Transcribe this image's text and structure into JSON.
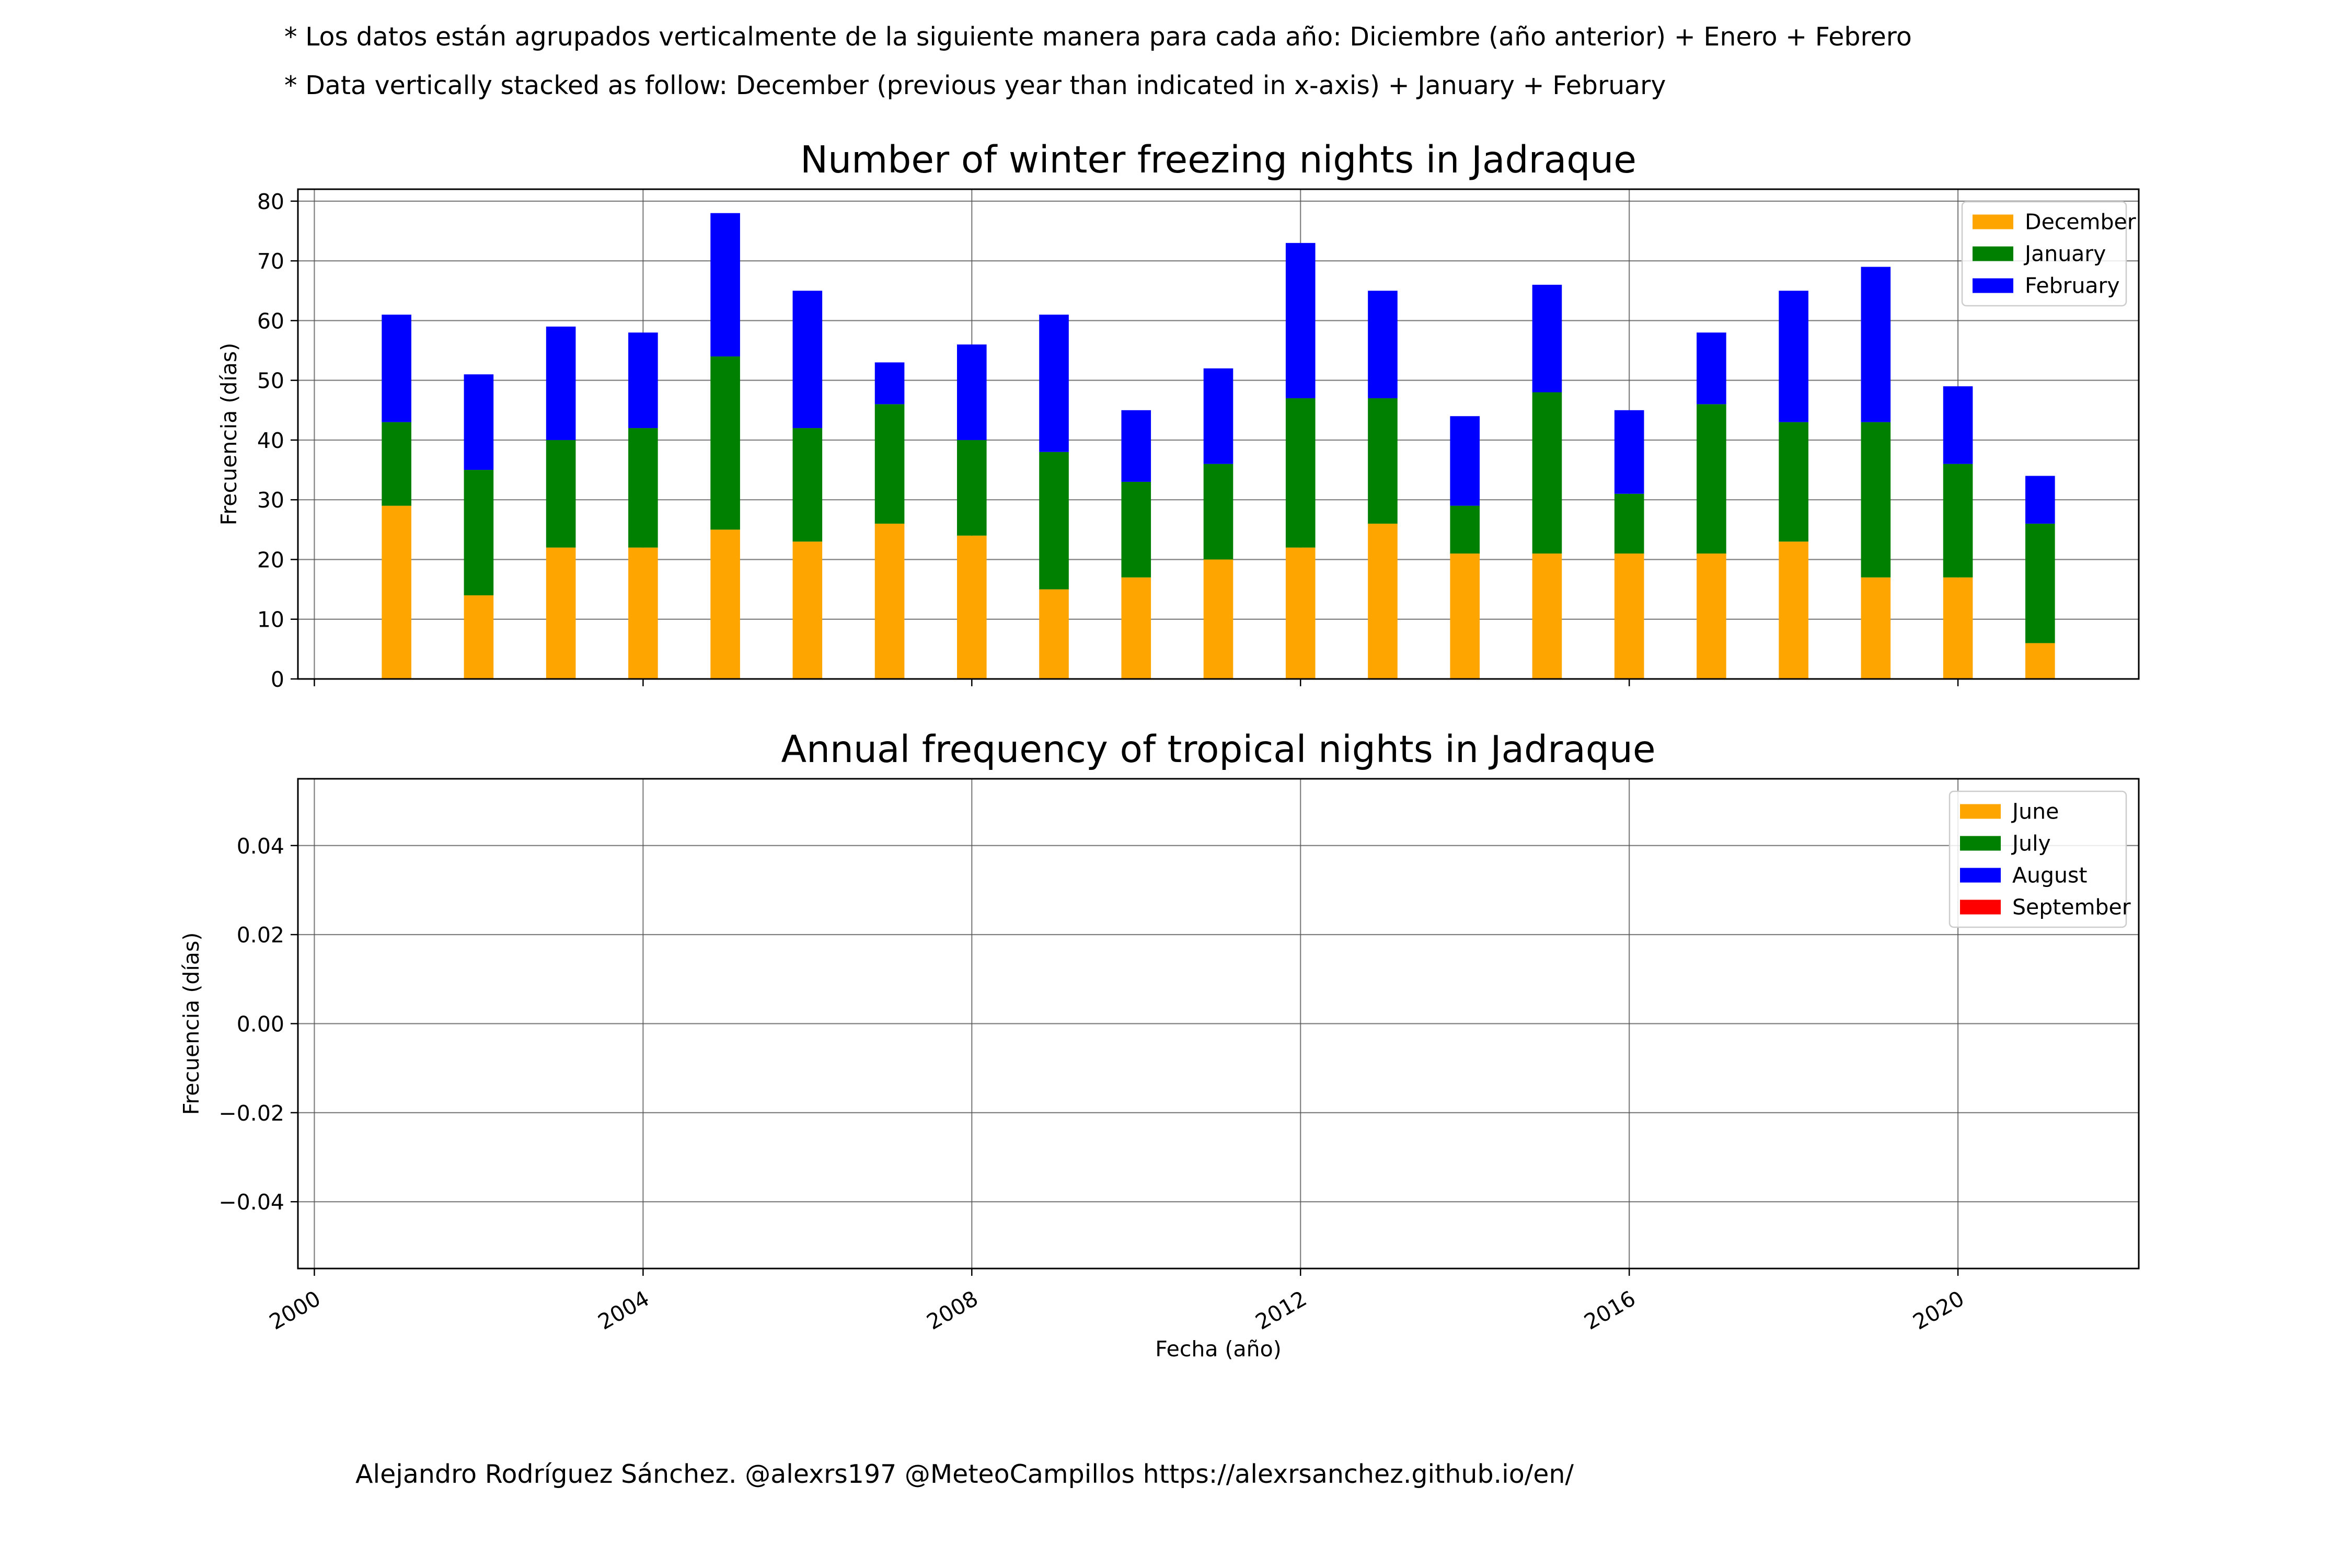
{
  "notes": {
    "es": "* Los datos están agrupados verticalmente de la siguiente manera para cada año: Diciembre (año anterior) + Enero  + Febrero",
    "en": "* Data vertically stacked as follow: December (previous year than indicated in x-axis) + January  + February"
  },
  "credit": "Alejandro Rodríguez Sánchez. @alexrs197 @MeteoCampillos   https://alexrsanchez.github.io/en/",
  "colors": {
    "june": "#ffa500",
    "july": "#008000",
    "august": "#0000ff",
    "september": "#ff0000"
  },
  "chart_data": [
    {
      "type": "bar",
      "stacked": true,
      "title": "Number of winter freezing nights in Jadraque",
      "ylabel": "Frecuencia (días)",
      "xlabel": "",
      "xlim": [
        1999.8,
        2022.2
      ],
      "ylim": [
        0,
        82
      ],
      "yticks": [
        0,
        10,
        20,
        30,
        40,
        50,
        60,
        70,
        80
      ],
      "xticks": [
        2000,
        2004,
        2008,
        2012,
        2016,
        2020
      ],
      "grid": true,
      "legend_position": "upper right",
      "x": [
        2001,
        2002,
        2003,
        2004,
        2005,
        2006,
        2007,
        2008,
        2009,
        2010,
        2011,
        2012,
        2013,
        2014,
        2015,
        2016,
        2017,
        2018,
        2019,
        2020,
        2021
      ],
      "series": [
        {
          "name": "December",
          "color": "#ffa500",
          "values": [
            29,
            14,
            22,
            22,
            25,
            23,
            26,
            24,
            15,
            17,
            20,
            22,
            26,
            21,
            21,
            21,
            21,
            23,
            17,
            17,
            6
          ]
        },
        {
          "name": "January",
          "color": "#008000",
          "values": [
            14,
            21,
            18,
            20,
            29,
            19,
            20,
            16,
            23,
            16,
            16,
            25,
            21,
            8,
            27,
            10,
            25,
            20,
            26,
            19,
            20
          ]
        },
        {
          "name": "February",
          "color": "#0000ff",
          "values": [
            18,
            16,
            19,
            16,
            24,
            23,
            7,
            16,
            23,
            12,
            16,
            26,
            18,
            15,
            18,
            14,
            12,
            22,
            26,
            13,
            8
          ]
        }
      ]
    },
    {
      "type": "bar",
      "stacked": true,
      "title": "Annual frequency of tropical nights in Jadraque",
      "ylabel": "Frecuencia (días)",
      "xlabel": "Fecha (año)",
      "xlim": [
        1999.8,
        2022.2
      ],
      "ylim": [
        -0.055,
        0.055
      ],
      "yticks": [
        -0.04,
        -0.02,
        0.0,
        0.02,
        0.04
      ],
      "ytick_labels": [
        "−0.04",
        "−0.02",
        "0.00",
        "0.02",
        "0.04"
      ],
      "xticks": [
        2000,
        2004,
        2008,
        2012,
        2016,
        2020
      ],
      "grid": true,
      "legend_position": "upper right",
      "series": [
        {
          "name": "June",
          "color": "#ffa500",
          "values": []
        },
        {
          "name": "July",
          "color": "#008000",
          "values": []
        },
        {
          "name": "August",
          "color": "#0000ff",
          "values": []
        },
        {
          "name": "September",
          "color": "#ff0000",
          "values": []
        }
      ]
    }
  ]
}
